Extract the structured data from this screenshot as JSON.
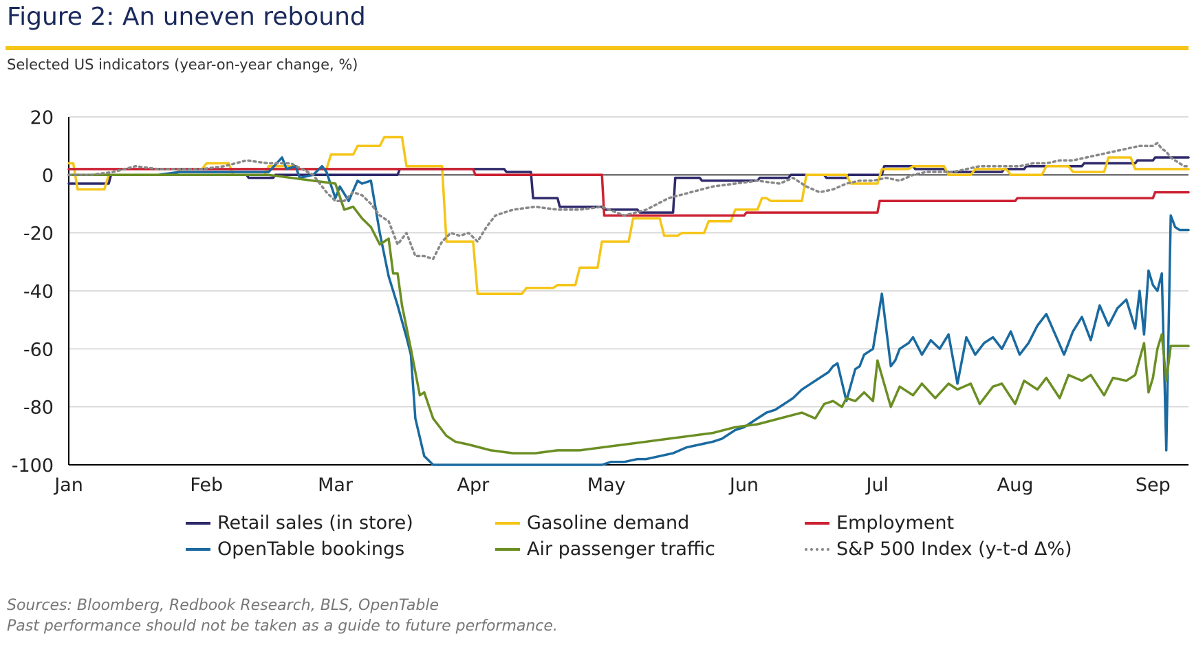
{
  "header": {
    "title": "Figure 2: An uneven rebound",
    "subtitle": "Selected US indicators (year-on-year change, %)"
  },
  "footer": {
    "sources": "Sources: Bloomberg, Redbook Research, BLS, OpenTable",
    "disclaimer": "Past performance should not be taken as a guide to future performance."
  },
  "colors": {
    "title": "#1a2a5c",
    "accent_rule": "#f5c518"
  },
  "chart_data": {
    "type": "line",
    "title": "Figure 2: An uneven rebound",
    "subtitle": "Selected US indicators (year-on-year change, %)",
    "xlabel": "",
    "ylabel": "",
    "xlim": [
      "Jan 1",
      "Sep 9"
    ],
    "ylim": [
      -100,
      20
    ],
    "yticks": [
      "20",
      "0",
      "-20",
      "-40",
      "-60",
      "-80",
      "-100"
    ],
    "ytick_values": [
      20,
      0,
      -20,
      -40,
      -60,
      -80,
      -100
    ],
    "xticks": [
      "Jan",
      "Feb",
      "Mar",
      "Apr",
      "May",
      "Jun",
      "Jul",
      "Aug",
      "Sep"
    ],
    "xtick_days": [
      0,
      31,
      60,
      91,
      121,
      152,
      182,
      213,
      244
    ],
    "x_end_day": 252,
    "gridlines": true,
    "zero_line": true,
    "legend_position": "bottom",
    "series": [
      {
        "name": "Retail sales (in store)",
        "color": "#2e2a6b",
        "style": "solid",
        "x": [
          0,
          9,
          9.5,
          30,
          40,
          40.5,
          46,
          46.5,
          60,
          74,
          74.5,
          98,
          98.5,
          104,
          104.5,
          110,
          110.5,
          120,
          120.5,
          128,
          128.5,
          136,
          136.5,
          142,
          142.5,
          155,
          155.5,
          162,
          162.5,
          170,
          170.5,
          175,
          175.5,
          183,
          183.5,
          190,
          190.5,
          197,
          197.5,
          210,
          210.5,
          215,
          215.5,
          228,
          228.5,
          240,
          240.5,
          244,
          244.5,
          252
        ],
        "y": [
          -3,
          -3,
          0,
          0,
          0,
          -1,
          -1,
          0,
          0,
          0,
          2,
          2,
          1,
          1,
          -8,
          -8,
          -11,
          -11,
          -12,
          -12,
          -13,
          -13,
          -1,
          -1,
          -2,
          -2,
          -1,
          -1,
          0,
          0,
          -1,
          -1,
          0,
          0,
          3,
          3,
          2,
          2,
          1,
          1,
          2,
          2,
          3,
          3,
          4,
          4,
          5,
          5,
          6,
          6
        ]
      },
      {
        "name": "Gasoline demand",
        "color": "#f5c518",
        "style": "solid",
        "x": [
          0,
          1,
          2,
          8,
          9,
          14,
          15,
          24,
          25,
          30,
          31,
          36,
          37,
          44,
          45,
          51,
          52,
          58,
          59,
          64,
          65,
          70,
          71,
          75,
          76,
          84,
          85,
          91,
          92,
          94,
          95,
          102,
          103,
          109,
          110,
          114,
          115,
          119,
          120,
          126,
          127,
          133,
          134,
          137,
          138,
          143,
          144,
          149,
          150,
          155,
          156,
          157,
          158,
          165,
          166,
          175,
          176,
          182,
          183,
          189,
          190,
          197,
          198,
          203,
          204,
          211,
          212,
          219,
          220,
          225,
          226,
          233,
          234,
          239,
          240,
          252
        ],
        "y": [
          4,
          4,
          -5,
          -5,
          0,
          0,
          0,
          0,
          2,
          2,
          4,
          4,
          0,
          0,
          3,
          3,
          2,
          2,
          7,
          7,
          10,
          10,
          13,
          13,
          3,
          3,
          -23,
          -23,
          -41,
          -41,
          -41,
          -41,
          -39,
          -39,
          -38,
          -38,
          -32,
          -32,
          -23,
          -23,
          -15,
          -15,
          -21,
          -21,
          -20,
          -20,
          -16,
          -16,
          -12,
          -12,
          -8,
          -8,
          -9,
          -9,
          0,
          0,
          -3,
          -3,
          2,
          2,
          3,
          3,
          0,
          0,
          2,
          2,
          0,
          0,
          3,
          3,
          1,
          1,
          6,
          6,
          2,
          2
        ]
      },
      {
        "name": "Employment",
        "color": "#cc2233",
        "style": "solid",
        "x": [
          0,
          91,
          91.5,
          120,
          120.5,
          152,
          152.5,
          182,
          182.5,
          213,
          213.5,
          244,
          244.5,
          252
        ],
        "y": [
          2,
          2,
          0,
          0,
          -14,
          -14,
          -13,
          -13,
          -9,
          -9,
          -8,
          -8,
          -6,
          -6
        ]
      },
      {
        "name": "OpenTable bookings",
        "color": "#1a6aa0",
        "style": "solid",
        "x": [
          0,
          5,
          10,
          15,
          20,
          25,
          30,
          35,
          40,
          45,
          48,
          49,
          51,
          52,
          55,
          57,
          58,
          60,
          61,
          63,
          65,
          66,
          68,
          70,
          72,
          74,
          76,
          77,
          78,
          80,
          82,
          85,
          88,
          91,
          95,
          100,
          105,
          110,
          115,
          120,
          122,
          125,
          128,
          130,
          133,
          136,
          139,
          142,
          145,
          147,
          150,
          152,
          155,
          157,
          159,
          161,
          163,
          165,
          167,
          169,
          171,
          172,
          173,
          175,
          177,
          178,
          179,
          181,
          183,
          185,
          186,
          187,
          189,
          190,
          192,
          194,
          196,
          198,
          200,
          202,
          204,
          206,
          208,
          210,
          212,
          214,
          216,
          218,
          220,
          222,
          224,
          226,
          228,
          230,
          232,
          234,
          236,
          238,
          240,
          241,
          242,
          243,
          244,
          245,
          246,
          247,
          248,
          249,
          250,
          251,
          252
        ],
        "y": [
          0,
          0,
          0,
          0,
          0,
          1,
          1,
          1,
          1,
          1,
          6,
          2,
          3,
          -1,
          0,
          3,
          1,
          -8,
          -4,
          -9,
          -2,
          -3,
          -2,
          -20,
          -35,
          -45,
          -56,
          -62,
          -84,
          -97,
          -100,
          -100,
          -100,
          -100,
          -100,
          -100,
          -100,
          -100,
          -100,
          -100,
          -99,
          -99,
          -98,
          -98,
          -97,
          -96,
          -94,
          -93,
          -92,
          -91,
          -88,
          -87,
          -84,
          -82,
          -81,
          -79,
          -77,
          -74,
          -72,
          -70,
          -68,
          -66,
          -65,
          -78,
          -67,
          -66,
          -62,
          -60,
          -41,
          -66,
          -64,
          -60,
          -58,
          -56,
          -62,
          -57,
          -60,
          -55,
          -72,
          -56,
          -62,
          -58,
          -56,
          -60,
          -54,
          -62,
          -58,
          -52,
          -48,
          -55,
          -62,
          -54,
          -49,
          -57,
          -45,
          -52,
          -46,
          -43,
          -53,
          -40,
          -55,
          -33,
          -38,
          -40,
          -34,
          -95,
          -14,
          -18,
          -19,
          -19,
          -19
        ]
      },
      {
        "name": "Air passenger traffic",
        "color": "#6b8e23",
        "style": "solid",
        "x": [
          0,
          30,
          45,
          60,
          62,
          64,
          66,
          68,
          70,
          72,
          73,
          74,
          75,
          77,
          79,
          80,
          82,
          85,
          87,
          90,
          95,
          100,
          105,
          110,
          115,
          120,
          125,
          130,
          135,
          140,
          145,
          150,
          155,
          160,
          165,
          168,
          170,
          172,
          174,
          175,
          177,
          179,
          181,
          182,
          185,
          187,
          190,
          192,
          195,
          198,
          200,
          203,
          205,
          208,
          210,
          213,
          215,
          218,
          220,
          223,
          225,
          228,
          230,
          233,
          235,
          238,
          240,
          242,
          243,
          244,
          245,
          246,
          247,
          248,
          249,
          250,
          252
        ],
        "y": [
          0,
          0,
          0,
          -3,
          -12,
          -11,
          -15,
          -18,
          -24,
          -22,
          -34,
          -34,
          -45,
          -60,
          -76,
          -75,
          -84,
          -90,
          -92,
          -93,
          -95,
          -96,
          -96,
          -95,
          -95,
          -94,
          -93,
          -92,
          -91,
          -90,
          -89,
          -87,
          -86,
          -84,
          -82,
          -84,
          -79,
          -78,
          -80,
          -77,
          -78,
          -75,
          -78,
          -64,
          -80,
          -73,
          -76,
          -72,
          -77,
          -72,
          -74,
          -72,
          -79,
          -73,
          -72,
          -79,
          -71,
          -74,
          -70,
          -77,
          -69,
          -71,
          -69,
          -76,
          -70,
          -71,
          -69,
          -58,
          -75,
          -70,
          -60,
          -55,
          -71,
          -59,
          -59,
          -59,
          -59
        ]
      },
      {
        "name": "S&P 500 Index (y-t-d Δ%)",
        "color": "#888888",
        "style": "dotted",
        "x": [
          0,
          5,
          10,
          15,
          20,
          25,
          30,
          35,
          40,
          45,
          50,
          55,
          58,
          60,
          62,
          64,
          66,
          68,
          70,
          72,
          74,
          76,
          78,
          80,
          82,
          84,
          86,
          88,
          90,
          92,
          94,
          96,
          98,
          100,
          105,
          110,
          115,
          120,
          125,
          130,
          135,
          140,
          145,
          150,
          155,
          160,
          163,
          166,
          169,
          172,
          175,
          178,
          181,
          184,
          187,
          190,
          193,
          196,
          199,
          202,
          205,
          208,
          211,
          214,
          217,
          220,
          223,
          226,
          229,
          232,
          235,
          238,
          241,
          243,
          244,
          245,
          246,
          247,
          248,
          249,
          250,
          251,
          252
        ],
        "y": [
          0,
          0,
          1,
          3,
          2,
          2,
          2,
          3,
          5,
          4,
          4,
          0,
          -6,
          -9,
          -9,
          -6,
          -7,
          -10,
          -14,
          -16,
          -24,
          -20,
          -28,
          -28,
          -29,
          -23,
          -20,
          -21,
          -20,
          -23,
          -18,
          -14,
          -13,
          -12,
          -11,
          -12,
          -12,
          -11,
          -14,
          -12,
          -8,
          -6,
          -4,
          -3,
          -2,
          -3,
          -1,
          -4,
          -6,
          -5,
          -3,
          -2,
          -2,
          -1,
          -2,
          0,
          1,
          1,
          1,
          2,
          3,
          3,
          3,
          3,
          4,
          4,
          5,
          5,
          6,
          7,
          8,
          9,
          10,
          10,
          10,
          11,
          9,
          8,
          6,
          5,
          4,
          3,
          3
        ]
      }
    ]
  }
}
